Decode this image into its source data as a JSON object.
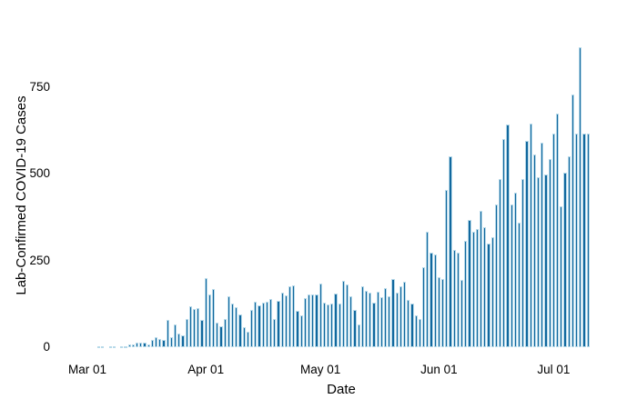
{
  "chart_data": {
    "type": "bar",
    "title": "",
    "xlabel": "Date",
    "ylabel": "Lab-Confirmed COVID-19 Cases",
    "x_tick_labels": [
      "Mar 01",
      "Apr 01",
      "May 01",
      "Jun 01",
      "Jul 01"
    ],
    "y_ticks": [
      0,
      250,
      500,
      750
    ],
    "ylim": [
      0,
      880
    ],
    "grid": false,
    "legend_position": "none",
    "bar_color": "#11689e",
    "bar_edge_color": "#b7d9e9",
    "dates": [
      "Mar 01",
      "Mar 02",
      "Mar 03",
      "Mar 04",
      "Mar 05",
      "Mar 06",
      "Mar 07",
      "Mar 08",
      "Mar 09",
      "Mar 10",
      "Mar 11",
      "Mar 12",
      "Mar 13",
      "Mar 14",
      "Mar 15",
      "Mar 16",
      "Mar 17",
      "Mar 18",
      "Mar 19",
      "Mar 20",
      "Mar 21",
      "Mar 22",
      "Mar 23",
      "Mar 24",
      "Mar 25",
      "Mar 26",
      "Mar 27",
      "Mar 28",
      "Mar 29",
      "Mar 30",
      "Mar 31",
      "Apr 01",
      "Apr 02",
      "Apr 03",
      "Apr 04",
      "Apr 05",
      "Apr 06",
      "Apr 07",
      "Apr 08",
      "Apr 09",
      "Apr 10",
      "Apr 11",
      "Apr 12",
      "Apr 13",
      "Apr 14",
      "Apr 15",
      "Apr 16",
      "Apr 17",
      "Apr 18",
      "Apr 19",
      "Apr 20",
      "Apr 21",
      "Apr 22",
      "Apr 23",
      "Apr 24",
      "Apr 25",
      "Apr 26",
      "Apr 27",
      "Apr 28",
      "Apr 29",
      "Apr 30",
      "May 01",
      "May 02",
      "May 03",
      "May 04",
      "May 05",
      "May 06",
      "May 07",
      "May 08",
      "May 09",
      "May 10",
      "May 11",
      "May 12",
      "May 13",
      "May 14",
      "May 15",
      "May 16",
      "May 17",
      "May 18",
      "May 19",
      "May 20",
      "May 21",
      "May 22",
      "May 23",
      "May 24",
      "May 25",
      "May 26",
      "May 27",
      "May 28",
      "May 29",
      "May 30",
      "May 31",
      "Jun 01",
      "Jun 02",
      "Jun 03",
      "Jun 04",
      "Jun 05",
      "Jun 06",
      "Jun 07",
      "Jun 08",
      "Jun 09",
      "Jun 10",
      "Jun 11",
      "Jun 12",
      "Jun 13",
      "Jun 14",
      "Jun 15",
      "Jun 16",
      "Jun 17",
      "Jun 18",
      "Jun 19",
      "Jun 20",
      "Jun 21",
      "Jun 22",
      "Jun 23",
      "Jun 24",
      "Jun 25",
      "Jun 26",
      "Jun 27",
      "Jun 28",
      "Jun 29",
      "Jun 30",
      "Jul 01",
      "Jul 02",
      "Jul 03",
      "Jul 04",
      "Jul 05",
      "Jul 06",
      "Jul 07",
      "Jul 08",
      "Jul 09",
      "Jul 10"
    ],
    "values": [
      0,
      0,
      0,
      1,
      1,
      0,
      1,
      1,
      0,
      2,
      3,
      7,
      9,
      12,
      13,
      14,
      9,
      21,
      30,
      24,
      22,
      78,
      30,
      65,
      39,
      35,
      81,
      118,
      110,
      114,
      78,
      199,
      151,
      167,
      71,
      60,
      80,
      148,
      125,
      116,
      95,
      57,
      45,
      108,
      130,
      121,
      128,
      131,
      139,
      82,
      133,
      157,
      149,
      175,
      178,
      104,
      91,
      142,
      151,
      151,
      151,
      184,
      129,
      123,
      127,
      154,
      127,
      191,
      180,
      147,
      108,
      66,
      177,
      163,
      158,
      129,
      161,
      145,
      170,
      147,
      196,
      158,
      177,
      189,
      136,
      125,
      93,
      80,
      232,
      333,
      274,
      267,
      202,
      197,
      453,
      551,
      280,
      273,
      193,
      307,
      368,
      333,
      342,
      394,
      346,
      298,
      316,
      412,
      486,
      600,
      642,
      412,
      447,
      359,
      486,
      595,
      645,
      556,
      490,
      591,
      497,
      542,
      617,
      674,
      407,
      503,
      551,
      729,
      615,
      866,
      615,
      615
    ]
  }
}
